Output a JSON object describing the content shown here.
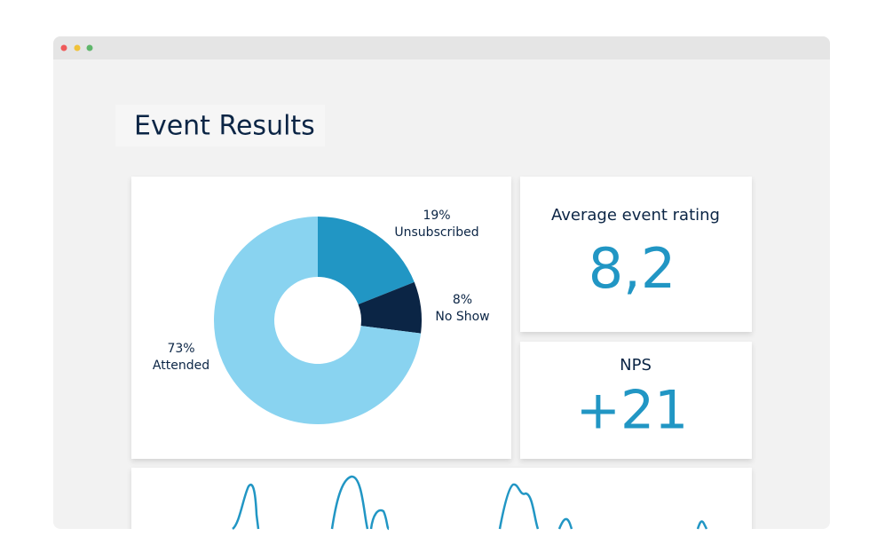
{
  "header": {
    "title": "Event Results"
  },
  "chart_data": {
    "type": "donut",
    "categories": [
      "Unsubscribed",
      "No Show",
      "Attended"
    ],
    "values": [
      19,
      8,
      73
    ],
    "value_labels": [
      "19%",
      "8%",
      "73%"
    ],
    "colors": [
      "#2196c4",
      "#0b2545",
      "#89d3f0"
    ]
  },
  "cards": [
    {
      "label": "Average event rating",
      "value": "8,2"
    },
    {
      "label": "NPS",
      "value": "+21"
    }
  ]
}
